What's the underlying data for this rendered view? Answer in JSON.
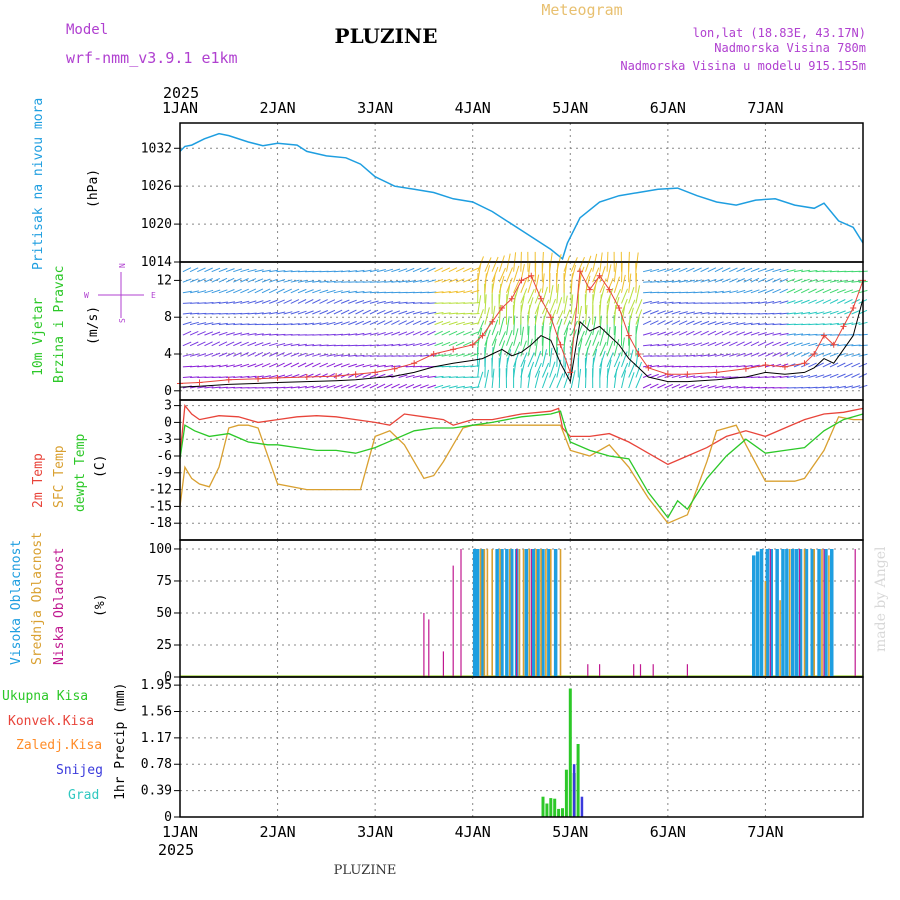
{
  "header": {
    "model_label": "Model",
    "model_name": "wrf-nmm_v3.9.1 e1km",
    "station": "PLUZINE",
    "meteogram": "Meteogram",
    "lonlat": "lon,lat (18.83E, 43.17N)",
    "elevation": "Nadmorska Visina 780m",
    "model_elevation": "Nadmorska Visina u modelu 915.155m",
    "footer_station": "PLUZINE",
    "watermark": "made by Angel"
  },
  "colors": {
    "pressure": "#1e9ee0",
    "temp2m": "#e8443a",
    "sfc_temp": "#d9a030",
    "dewpoint": "#2cc828",
    "high_cloud": "#1e9ee0",
    "mid_cloud": "#d9a030",
    "low_cloud": "#c01890",
    "total_precip": "#2cc828",
    "conv_precip": "#e8443a",
    "grid_precip": "#ff8c28",
    "snow": "#3a3adc",
    "hail": "#30c8c0",
    "purple_text": "#b040d0",
    "orange_text": "#e8c070"
  },
  "chart_data": [
    {
      "type": "line",
      "panel": "pressure",
      "ylabel_left": "Pritisak na nivou mora",
      "unit": "(hPa)",
      "year": "2025",
      "x_ticks": [
        "1JAN",
        "2JAN",
        "3JAN",
        "4JAN",
        "5JAN",
        "6JAN",
        "7JAN"
      ],
      "ylim": [
        1014,
        1036
      ],
      "y_ticks": [
        1014,
        1020,
        1026,
        1032
      ],
      "x": [
        0,
        0.05,
        0.12,
        0.25,
        0.4,
        0.5,
        0.7,
        0.85,
        1.0,
        1.2,
        1.3,
        1.5,
        1.7,
        1.85,
        2.0,
        2.2,
        2.4,
        2.6,
        2.8,
        3.0,
        3.2,
        3.5,
        3.7,
        3.8,
        3.88,
        3.92,
        3.97,
        4.1,
        4.3,
        4.5,
        4.7,
        4.9,
        5.1,
        5.3,
        5.5,
        5.7,
        5.9,
        6.1,
        6.3,
        6.5,
        6.6,
        6.75,
        6.9,
        7.0
      ],
      "values": [
        1031.5,
        1032.3,
        1032.5,
        1033.5,
        1034.3,
        1034.0,
        1033.0,
        1032.4,
        1032.8,
        1032.5,
        1031.5,
        1030.8,
        1030.5,
        1029.5,
        1027.5,
        1026.0,
        1025.5,
        1025.0,
        1024.0,
        1023.5,
        1022.0,
        1019.0,
        1017.0,
        1016.0,
        1015.0,
        1014.5,
        1017.0,
        1021.0,
        1023.5,
        1024.5,
        1025.0,
        1025.5,
        1025.7,
        1024.5,
        1023.5,
        1023.0,
        1023.8,
        1024.0,
        1023.0,
        1022.5,
        1023.3,
        1020.5,
        1019.5,
        1017.0
      ]
    },
    {
      "type": "line",
      "panel": "wind",
      "ylabel_left": [
        "10m Vjetar",
        "Brzina i Pravac"
      ],
      "unit": "(m/s)",
      "compass": {
        "w": "W",
        "e": "E",
        "n": "N",
        "s": "S"
      },
      "ylim": [
        -1,
        14
      ],
      "y_ticks": [
        0,
        4,
        8,
        12
      ],
      "series": [
        {
          "name": "speed",
          "x": [
            0,
            0.2,
            0.5,
            0.8,
            1.0,
            1.3,
            1.6,
            1.8,
            2.0,
            2.2,
            2.4,
            2.6,
            2.8,
            3.0,
            3.1,
            3.2,
            3.3,
            3.4,
            3.5,
            3.6,
            3.7,
            3.8,
            3.9,
            4.0,
            4.1,
            4.2,
            4.3,
            4.4,
            4.5,
            4.6,
            4.7,
            4.8,
            5.0,
            5.2,
            5.5,
            5.8,
            6.0,
            6.2,
            6.4,
            6.5,
            6.6,
            6.7,
            6.8,
            6.9,
            7.0
          ],
          "values": [
            0.4,
            0.5,
            0.7,
            0.8,
            0.9,
            1.0,
            1.1,
            1.2,
            1.4,
            1.6,
            2.0,
            2.6,
            3.0,
            3.3,
            3.5,
            4.0,
            4.5,
            3.8,
            4.2,
            5.0,
            6.0,
            5.5,
            3.0,
            1.0,
            7.5,
            6.5,
            7.0,
            6.0,
            5.0,
            3.5,
            2.5,
            1.5,
            1.0,
            1.0,
            1.2,
            1.5,
            2.0,
            1.8,
            2.0,
            2.5,
            3.5,
            3.0,
            4.5,
            6.0,
            10.0
          ]
        },
        {
          "name": "gust",
          "x": [
            0,
            0.2,
            0.5,
            0.8,
            1.0,
            1.3,
            1.6,
            1.8,
            2.0,
            2.2,
            2.4,
            2.6,
            2.8,
            3.0,
            3.1,
            3.2,
            3.3,
            3.4,
            3.5,
            3.6,
            3.7,
            3.8,
            3.9,
            4.0,
            4.1,
            4.2,
            4.3,
            4.4,
            4.5,
            4.6,
            4.7,
            4.8,
            5.0,
            5.2,
            5.5,
            5.8,
            6.0,
            6.2,
            6.4,
            6.5,
            6.6,
            6.7,
            6.8,
            6.9,
            7.0
          ],
          "values": [
            0.8,
            0.9,
            1.2,
            1.3,
            1.4,
            1.5,
            1.6,
            1.8,
            2.0,
            2.4,
            3.0,
            4.0,
            4.5,
            5.0,
            6.0,
            7.5,
            9.0,
            10.0,
            12.0,
            12.5,
            10.0,
            8.0,
            5.0,
            2.0,
            13.0,
            11.0,
            12.5,
            11.0,
            9.0,
            6.0,
            4.0,
            2.5,
            1.8,
            1.8,
            2.0,
            2.4,
            2.8,
            2.6,
            3.0,
            4.0,
            6.0,
            5.0,
            7.0,
            9.0,
            12.0
          ]
        }
      ]
    },
    {
      "type": "line",
      "panel": "temperature",
      "ylabel_left": [
        "2m Temp",
        "SFC Temp",
        "dewpt Temp"
      ],
      "unit": "(C)",
      "ylim": [
        -21,
        4
      ],
      "y_ticks": [
        -18,
        -15,
        -12,
        -9,
        -6,
        -3,
        0,
        3
      ],
      "series": [
        {
          "name": "2m Temp",
          "x": [
            0,
            0.05,
            0.12,
            0.2,
            0.4,
            0.6,
            0.8,
            1.0,
            1.2,
            1.4,
            1.6,
            1.8,
            2.0,
            2.15,
            2.3,
            2.5,
            2.7,
            2.8,
            2.9,
            3.0,
            3.2,
            3.5,
            3.8,
            3.88,
            3.92,
            4.0,
            4.2,
            4.4,
            4.6,
            4.8,
            5.0,
            5.2,
            5.4,
            5.6,
            5.8,
            6.0,
            6.2,
            6.4,
            6.6,
            6.8,
            7.0
          ],
          "values": [
            -6.0,
            3.0,
            1.5,
            0.5,
            1.2,
            1.0,
            0.0,
            0.5,
            1.0,
            1.2,
            1.0,
            0.5,
            0.0,
            -0.5,
            1.5,
            1.0,
            0.5,
            -0.5,
            0.0,
            0.5,
            0.5,
            1.5,
            2.0,
            2.5,
            -1.0,
            -2.5,
            -2.5,
            -2.0,
            -3.5,
            -5.5,
            -7.5,
            -6.0,
            -4.5,
            -2.5,
            -1.5,
            -2.5,
            -1.0,
            0.5,
            1.5,
            1.8,
            2.5
          ]
        },
        {
          "name": "SFC Temp",
          "x": [
            0,
            0.05,
            0.12,
            0.2,
            0.3,
            0.4,
            0.5,
            0.6,
            0.7,
            0.8,
            1.0,
            1.3,
            1.6,
            1.85,
            2.0,
            2.15,
            2.3,
            2.5,
            2.6,
            2.7,
            2.8,
            2.9,
            3.0,
            3.2,
            3.5,
            3.8,
            3.9,
            4.0,
            4.2,
            4.4,
            4.6,
            4.8,
            5.0,
            5.2,
            5.4,
            5.5,
            5.7,
            5.8,
            6.0,
            6.1,
            6.3,
            6.4,
            6.6,
            6.75,
            6.9,
            7.0
          ],
          "values": [
            -15.0,
            -8.0,
            -10.0,
            -11.0,
            -11.5,
            -8.0,
            -1.0,
            -0.5,
            -0.5,
            -1.0,
            -11.0,
            -12.0,
            -12.0,
            -12.0,
            -2.5,
            -1.5,
            -4.0,
            -10.0,
            -9.5,
            -7.0,
            -4.0,
            -1.0,
            -0.5,
            -0.5,
            -0.5,
            -0.5,
            -0.5,
            -5.0,
            -6.0,
            -4.0,
            -8.0,
            -13.5,
            -18.0,
            -16.5,
            -7.0,
            -1.5,
            -0.5,
            -4.0,
            -10.5,
            -10.5,
            -10.5,
            -10.0,
            -5.0,
            1.0,
            0.5,
            0.5
          ]
        },
        {
          "name": "dewpt Temp",
          "x": [
            0,
            0.05,
            0.15,
            0.3,
            0.5,
            0.7,
            0.9,
            1.0,
            1.2,
            1.4,
            1.6,
            1.8,
            2.0,
            2.2,
            2.4,
            2.6,
            2.8,
            3.0,
            3.2,
            3.5,
            3.8,
            3.9,
            3.95,
            4.0,
            4.2,
            4.4,
            4.6,
            4.8,
            5.0,
            5.1,
            5.2,
            5.4,
            5.6,
            5.8,
            6.0,
            6.2,
            6.4,
            6.6,
            6.8,
            7.0
          ],
          "values": [
            -6.5,
            -0.5,
            -1.5,
            -2.5,
            -2.0,
            -3.5,
            -4.0,
            -4.0,
            -4.5,
            -5.0,
            -5.0,
            -5.5,
            -4.5,
            -3.0,
            -1.5,
            -1.0,
            -1.0,
            -0.5,
            0.0,
            1.0,
            1.5,
            2.0,
            -1.0,
            -3.5,
            -5.0,
            -6.0,
            -6.5,
            -12.5,
            -17.0,
            -14.0,
            -15.5,
            -10.0,
            -6.0,
            -3.0,
            -5.5,
            -5.0,
            -4.5,
            -1.5,
            0.5,
            1.5
          ]
        }
      ]
    },
    {
      "type": "bar",
      "panel": "cloud",
      "ylabel_left": [
        "Visoka Oblacnost",
        "Srednja Oblacnost",
        "Niska Oblacnost"
      ],
      "unit": "(%)",
      "ylim": [
        0,
        100
      ],
      "y_ticks": [
        0,
        25,
        50,
        75,
        100
      ],
      "series": [
        {
          "name": "Visoka Oblacnost",
          "x": [
            3.02,
            3.05,
            3.1,
            3.25,
            3.3,
            3.35,
            3.4,
            3.45,
            3.55,
            3.62,
            3.67,
            3.72,
            3.78,
            3.85,
            5.88,
            5.92,
            5.96,
            6.02,
            6.06,
            6.12,
            6.18,
            6.22,
            6.28,
            6.32,
            6.36,
            6.42,
            6.48,
            6.55,
            6.62,
            6.68
          ],
          "values": [
            100,
            100,
            100,
            100,
            100,
            100,
            100,
            100,
            100,
            100,
            100,
            100,
            100,
            100,
            95,
            98,
            100,
            100,
            100,
            100,
            100,
            100,
            100,
            100,
            100,
            100,
            100,
            100,
            100,
            100
          ]
        },
        {
          "name": "Srednja Oblacnost",
          "x": [
            3.08,
            3.12,
            3.15,
            3.2,
            3.28,
            3.38,
            3.48,
            3.52,
            3.58,
            3.65,
            3.7,
            3.75,
            3.8,
            3.9,
            6.0,
            6.15,
            6.25,
            6.4,
            6.5,
            6.58,
            6.65
          ],
          "values": [
            100,
            100,
            100,
            100,
            100,
            100,
            100,
            100,
            100,
            100,
            100,
            100,
            100,
            100,
            75,
            60,
            100,
            100,
            100,
            100,
            95
          ]
        },
        {
          "name": "Niska Oblacnost",
          "x": [
            2.5,
            2.55,
            2.7,
            2.8,
            2.88,
            3.45,
            3.6,
            4.18,
            4.3,
            4.65,
            4.72,
            4.85,
            5.2,
            6.05,
            6.35,
            6.6,
            6.92
          ],
          "values": [
            50,
            45,
            20,
            87,
            100,
            100,
            100,
            10,
            10,
            10,
            10,
            10,
            10,
            100,
            100,
            100,
            100
          ]
        }
      ]
    },
    {
      "type": "bar",
      "panel": "precip",
      "ylabel_left": [
        "Ukupna Kisa",
        "Konvek.Kisa",
        "Zaledj.Kisa",
        "Snijeg",
        "Grad"
      ],
      "unit": "1hr Precip (mm)",
      "ylim": [
        0,
        1.95
      ],
      "y_ticks": [
        0,
        0.39,
        0.78,
        1.17,
        1.56,
        1.95
      ],
      "y_tick_labels": [
        "0",
        "0.39",
        "0.78",
        "1.17",
        "1.56",
        "1.95"
      ],
      "x_ticks": [
        "1JAN",
        "2JAN",
        "3JAN",
        "4JAN",
        "5JAN",
        "6JAN",
        "7JAN"
      ],
      "year": "2025",
      "series": [
        {
          "name": "Ukupna Kisa",
          "x": [
            3.72,
            3.76,
            3.8,
            3.84,
            3.88,
            3.92,
            3.96,
            4.0,
            4.04,
            4.08
          ],
          "values": [
            0.3,
            0.2,
            0.28,
            0.27,
            0.12,
            0.13,
            0.7,
            1.9,
            0.65,
            1.08
          ]
        },
        {
          "name": "Snijeg",
          "x": [
            4.04,
            4.12
          ],
          "values": [
            0.78,
            0.3
          ]
        }
      ]
    }
  ]
}
